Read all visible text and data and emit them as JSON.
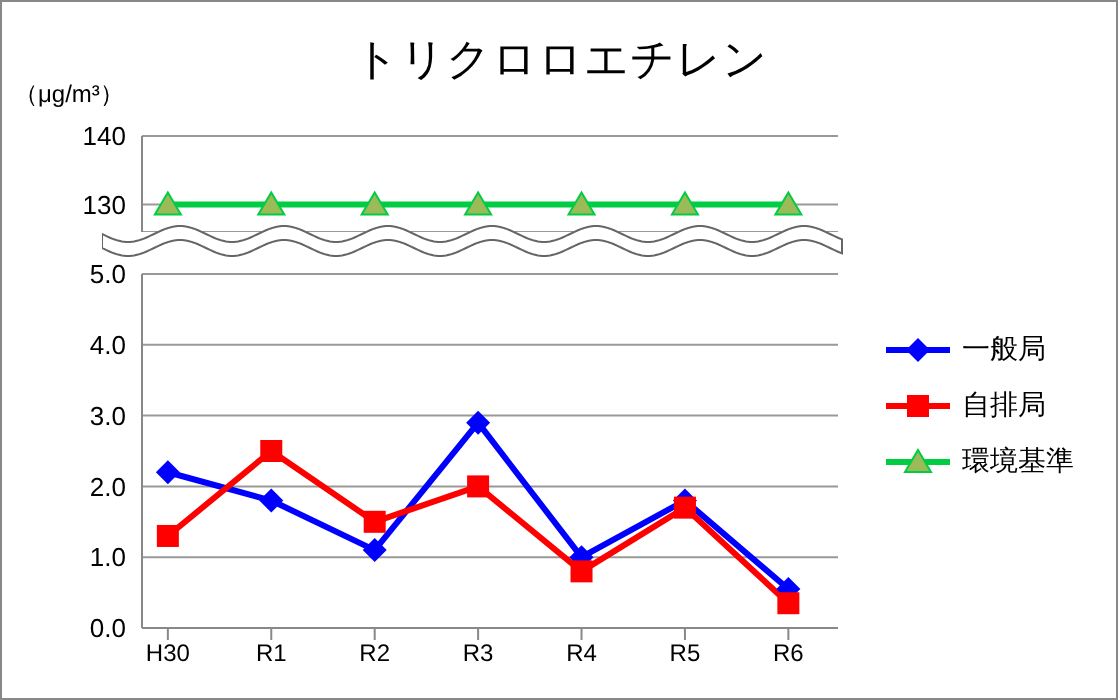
{
  "chart_data": [
    {
      "type": "line",
      "title": "トリクロロエチレン",
      "ylabel": "（μg/m³）",
      "categories": [
        null,
        null,
        null,
        null,
        null,
        null,
        null
      ],
      "ylim": [
        126,
        140
      ],
      "yticks": [
        130,
        140
      ],
      "grid": "y",
      "tick_labels": "y",
      "legend": "right",
      "series": [
        {
          "name": "環境基準",
          "color": "#00cc44",
          "marker": "triangle",
          "values": [
            130,
            130,
            130,
            130,
            130,
            130,
            130
          ]
        }
      ]
    },
    {
      "type": "line",
      "categories": [
        "H30",
        "R1",
        "R2",
        "R3",
        "R4",
        "R5",
        "R6"
      ],
      "ylim": [
        0,
        5
      ],
      "yticks": [
        {
          "value": 0,
          "label": "0.0"
        },
        {
          "value": 1,
          "label": "1.0"
        },
        {
          "value": 2,
          "label": "2.0"
        },
        {
          "value": 3,
          "label": "3.0"
        },
        {
          "value": 4,
          "label": "4.0"
        },
        {
          "value": 5,
          "label": "5.0"
        }
      ],
      "grid": "y",
      "legend": "right",
      "series": [
        {
          "name": "一般局",
          "color": "#0000ff",
          "marker": "diamond",
          "values": [
            2.2,
            1.8,
            1.1,
            2.9,
            1.0,
            1.8,
            0.55
          ]
        },
        {
          "name": "自排局",
          "color": "#ff0000",
          "marker": "square",
          "values": [
            1.3,
            2.5,
            1.5,
            2.0,
            0.8,
            1.7,
            0.35
          ]
        }
      ]
    }
  ]
}
